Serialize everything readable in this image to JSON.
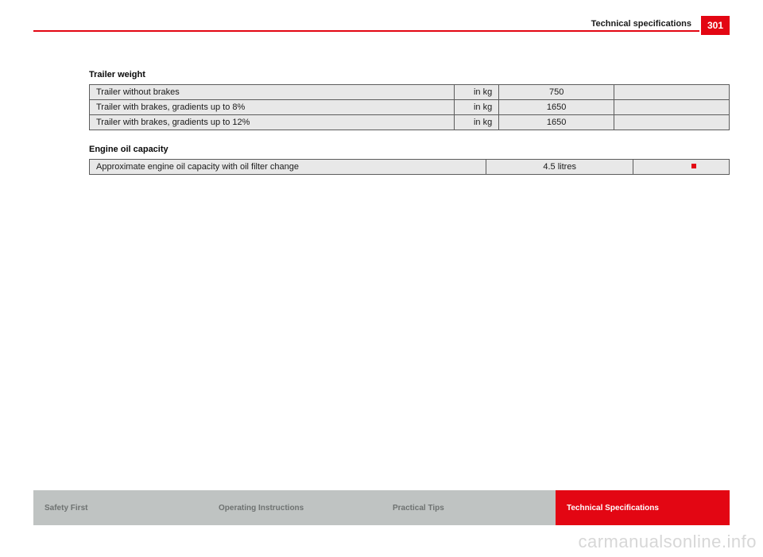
{
  "header": {
    "section_title": "Technical specifications",
    "page_number": "301",
    "rule_color": "#e30613",
    "page_box_bg": "#e30613",
    "page_box_fg": "#ffffff"
  },
  "trailer_weight": {
    "heading": "Trailer weight",
    "rows": [
      {
        "label": "Trailer without brakes",
        "unit": "in kg",
        "value": "750"
      },
      {
        "label": "Trailer with brakes, gradients up to 8%",
        "unit": "in kg",
        "value": "1650"
      },
      {
        "label": "Trailer with brakes, gradients up to 12%",
        "unit": "in kg",
        "value": "1650"
      }
    ],
    "cell_bg": "#e8e8e8",
    "border_color": "#5c5c5c"
  },
  "engine_oil": {
    "heading": "Engine oil capacity",
    "rows": [
      {
        "label": "Approximate engine oil capacity with oil filter change",
        "value": "4.5 litres"
      }
    ],
    "end_marker_color": "#e30613"
  },
  "footer": {
    "tabs": [
      {
        "label": "Safety First",
        "active": false
      },
      {
        "label": "Operating Instructions",
        "active": false
      },
      {
        "label": "Practical Tips",
        "active": false
      },
      {
        "label": "Technical Specifications",
        "active": true
      }
    ],
    "inactive_bg": "#bfc3c2",
    "inactive_fg": "#6e7271",
    "active_bg": "#e30613",
    "active_fg": "#ffffff"
  },
  "watermark": {
    "text": "carmanualsonline.info",
    "color": "#d7d7d7"
  }
}
